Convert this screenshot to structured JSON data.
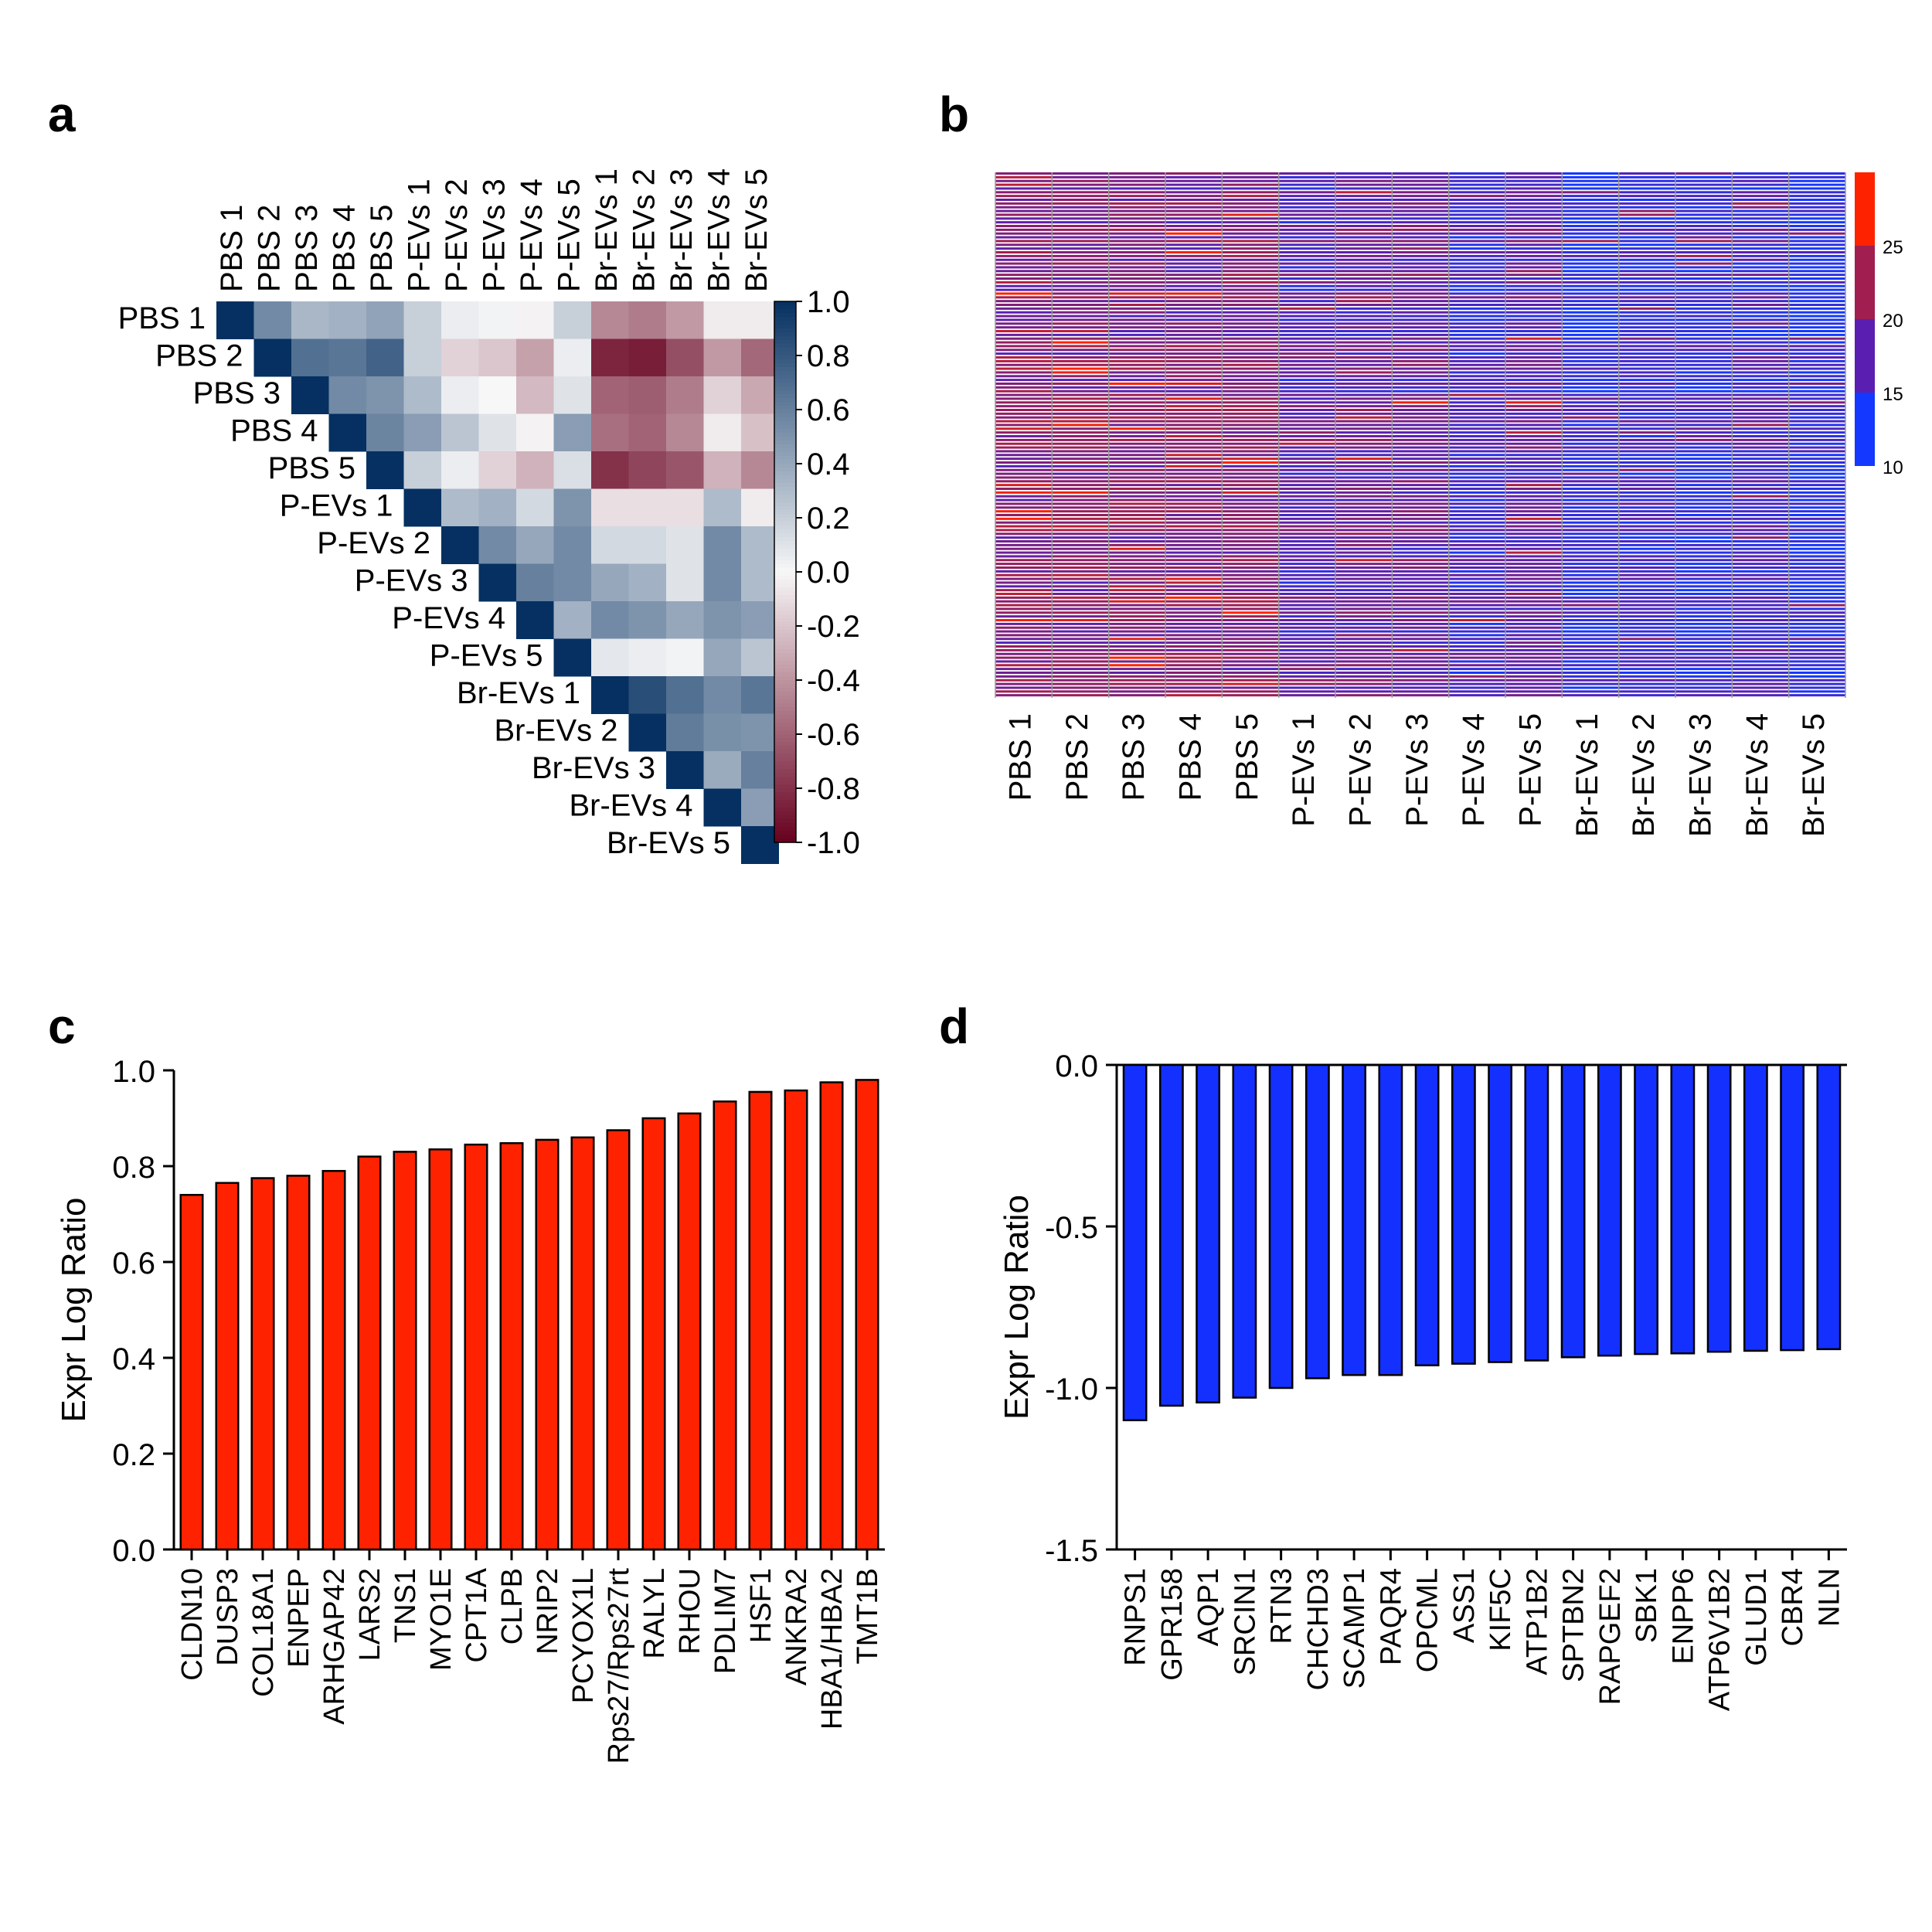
{
  "panels": {
    "a": "a",
    "b": "b",
    "c": "c",
    "d": "d"
  },
  "samples": [
    "PBS 1",
    "PBS 2",
    "PBS 3",
    "PBS 4",
    "PBS 5",
    "P-EVs 1",
    "P-EVs 2",
    "P-EVs 3",
    "P-EVs 4",
    "P-EVs 5",
    "Br-EVs 1",
    "Br-EVs 2",
    "Br-EVs 3",
    "Br-EVs 4",
    "Br-EVs 5"
  ],
  "chart_data": [
    {
      "panel": "a",
      "type": "heatmap",
      "title": "",
      "rows": [
        "PBS 1",
        "PBS 2",
        "PBS 3",
        "PBS 4",
        "PBS 5",
        "P-EVs 1",
        "P-EVs 2",
        "P-EVs 3",
        "P-EVs 4",
        "P-EVs 5",
        "Br-EVs 1",
        "Br-EVs 2",
        "Br-EVs 3",
        "Br-EVs 4",
        "Br-EVs 5"
      ],
      "columns": [
        "PBS 1",
        "PBS 2",
        "PBS 3",
        "PBS 4",
        "PBS 5",
        "P-EVs 1",
        "P-EVs 2",
        "P-EVs 3",
        "P-EVs 4",
        "P-EVs 5",
        "Br-EVs 1",
        "Br-EVs 2",
        "Br-EVs 3",
        "Br-EVs 4",
        "Br-EVs 5"
      ],
      "matrix_upper": [
        [
          1.0,
          0.55,
          0.32,
          0.35,
          0.42,
          0.2,
          0.05,
          0.02,
          -0.02,
          0.2,
          -0.45,
          -0.5,
          -0.38,
          -0.05,
          -0.05
        ],
        [
          1.0,
          0.68,
          0.65,
          0.75,
          0.2,
          -0.15,
          -0.2,
          -0.35,
          0.05,
          -0.85,
          -0.88,
          -0.68,
          -0.38,
          -0.58
        ],
        [
          1.0,
          0.55,
          0.5,
          0.3,
          0.05,
          0.0,
          -0.25,
          0.1,
          -0.6,
          -0.62,
          -0.5,
          -0.15,
          -0.32
        ],
        [
          1.0,
          0.58,
          0.45,
          0.25,
          0.1,
          -0.02,
          0.45,
          -0.55,
          -0.6,
          -0.45,
          -0.05,
          -0.22
        ],
        [
          1.0,
          0.2,
          0.05,
          -0.15,
          -0.28,
          0.12,
          -0.8,
          -0.72,
          -0.65,
          -0.28,
          -0.45
        ],
        [
          1.0,
          0.3,
          0.35,
          0.15,
          0.5,
          -0.1,
          -0.1,
          -0.1,
          0.3,
          -0.05
        ],
        [
          1.0,
          0.55,
          0.4,
          0.55,
          0.15,
          0.15,
          0.1,
          0.55,
          0.3
        ],
        [
          1.0,
          0.6,
          0.55,
          0.4,
          0.35,
          0.1,
          0.55,
          0.3
        ],
        [
          1.0,
          0.35,
          0.55,
          0.5,
          0.4,
          0.5,
          0.45
        ],
        [
          1.0,
          0.08,
          0.05,
          0.02,
          0.4,
          0.25
        ],
        [
          1.0,
          0.85,
          0.68,
          0.55,
          0.65
        ],
        [
          1.0,
          0.62,
          0.52,
          0.5
        ],
        [
          1.0,
          0.38,
          0.6
        ],
        [
          1.0,
          0.45
        ],
        [
          1.0
        ]
      ],
      "colorbar": {
        "min": -1.0,
        "max": 1.0,
        "ticks": [
          "1.0",
          "0.8",
          "0.6",
          "0.4",
          "0.2",
          "0.0",
          "-0.2",
          "-0.4",
          "-0.6",
          "-0.8",
          "-1.0"
        ]
      },
      "colors": {
        "neg": "#67001f",
        "zero": "#f7f7f7",
        "pos": "#053061"
      }
    },
    {
      "panel": "b",
      "type": "heatmap",
      "title": "",
      "columns": [
        "PBS 1",
        "PBS 2",
        "PBS 3",
        "PBS 4",
        "PBS 5",
        "P-EVs 1",
        "P-EVs 2",
        "P-EVs 3",
        "P-EVs 4",
        "P-EVs 5",
        "Br-EVs 1",
        "Br-EVs 2",
        "Br-EVs 3",
        "Br-EVs 4",
        "Br-EVs 5"
      ],
      "n_rows": 140,
      "value_range": [
        10,
        30
      ],
      "column_level": [
        20.5,
        20.8,
        20.3,
        20.0,
        20.3,
        16.5,
        17.8,
        17.5,
        14.5,
        16.8,
        12.5,
        13.5,
        12.5,
        14.2,
        12.0
      ],
      "colorbar": {
        "ticks": [
          "25",
          "20",
          "15",
          "10"
        ],
        "colors": [
          "#ff2200",
          "#a01e50",
          "#5a1fb0",
          "#1438ff"
        ]
      }
    },
    {
      "panel": "c",
      "type": "bar",
      "title": "",
      "xlabel": "",
      "ylabel": "Expr Log Ratio",
      "ylim": [
        0.0,
        1.0
      ],
      "yticks": [
        "1.0",
        "0.8",
        "0.6",
        "0.4",
        "0.2",
        "0.0"
      ],
      "categories": [
        "CLDN10",
        "DUSP3",
        "COL18A1",
        "ENPEP",
        "ARHGAP42",
        "LARS2",
        "TNS1",
        "MYO1E",
        "CPT1A",
        "CLPB",
        "NRIP2",
        "PCYOX1L",
        "Rps27/Rps27rt",
        "RALYL",
        "RHOU",
        "PDLIM7",
        "HSF1",
        "ANKRA2",
        "HBA1/HBA2",
        "TMT1B"
      ],
      "values": [
        0.74,
        0.765,
        0.775,
        0.78,
        0.79,
        0.82,
        0.83,
        0.835,
        0.845,
        0.848,
        0.855,
        0.86,
        0.875,
        0.9,
        0.91,
        0.935,
        0.955,
        0.958,
        0.975,
        0.98
      ],
      "color": "#ff2200"
    },
    {
      "panel": "d",
      "type": "bar",
      "title": "",
      "xlabel": "",
      "ylabel": "Expr Log Ratio",
      "ylim": [
        -1.5,
        0.0
      ],
      "yticks": [
        "0.0",
        "-0.5",
        "-1.0",
        "-1.5"
      ],
      "categories": [
        "RNPS1",
        "GPR158",
        "AQP1",
        "SRCIN1",
        "RTN3",
        "CHCHD3",
        "SCAMP1",
        "PAQR4",
        "OPCML",
        "ASS1",
        "KIF5C",
        "ATP1B2",
        "SPTBN2",
        "RAPGEF2",
        "SBK1",
        "ENPP6",
        "ATP6V1B2",
        "GLUD1",
        "CBR4",
        "NLN"
      ],
      "values": [
        -1.1,
        -1.055,
        -1.045,
        -1.03,
        -1.0,
        -0.97,
        -0.96,
        -0.96,
        -0.93,
        -0.925,
        -0.92,
        -0.915,
        -0.905,
        -0.9,
        -0.895,
        -0.893,
        -0.888,
        -0.885,
        -0.883,
        -0.88
      ],
      "color": "#1430ff"
    }
  ]
}
